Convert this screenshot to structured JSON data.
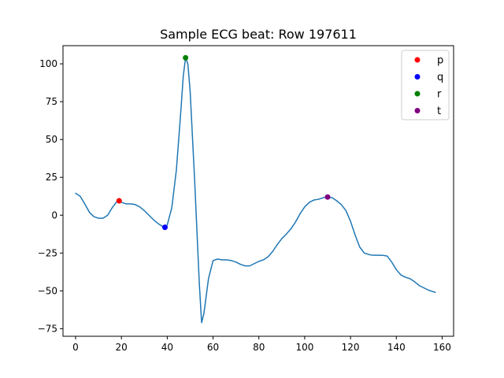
{
  "chart_data": {
    "type": "line",
    "title": "Sample ECG beat: Row 197611",
    "xlabel": "",
    "ylabel": "",
    "xlim": [
      -5.5,
      165
    ],
    "ylim": [
      -80,
      112
    ],
    "xticks": [
      0,
      20,
      40,
      60,
      80,
      100,
      120,
      140,
      160
    ],
    "yticks": [
      -75,
      -50,
      -25,
      0,
      25,
      50,
      75,
      100
    ],
    "grid": false,
    "legend_position": "top-right",
    "line_color": "#1f77b4",
    "series": [
      {
        "x": [
          0,
          2,
          4,
          6,
          8,
          10,
          12,
          14,
          16,
          18,
          19,
          20,
          22,
          24,
          26,
          28,
          30,
          32,
          34,
          36,
          38,
          39,
          40,
          42,
          44,
          46,
          47,
          48,
          49,
          50,
          52,
          54,
          55,
          56,
          58,
          60,
          62,
          64,
          66,
          68,
          70,
          72,
          74,
          76,
          78,
          80,
          82,
          84,
          86,
          88,
          90,
          92,
          94,
          96,
          98,
          100,
          102,
          104,
          106,
          108,
          110,
          112,
          114,
          116,
          118,
          120,
          122,
          124,
          126,
          128,
          130,
          132,
          134,
          136,
          138,
          140,
          142,
          144,
          146,
          148,
          150,
          152,
          154,
          156,
          157
        ],
        "y": [
          14.5,
          12.5,
          7.5,
          2,
          -1,
          -2,
          -2,
          0,
          5,
          9,
          9.5,
          8.5,
          7.5,
          7.5,
          7,
          5.5,
          3,
          0,
          -3,
          -5.5,
          -7.5,
          -8,
          -6.5,
          5,
          30,
          70,
          92,
          104,
          100,
          82,
          22,
          -45,
          -71,
          -65,
          -42,
          -30,
          -29,
          -29.5,
          -29.5,
          -30,
          -31,
          -32.5,
          -33.5,
          -33.5,
          -32,
          -30.5,
          -29.5,
          -27.5,
          -24,
          -19.5,
          -15.5,
          -12.5,
          -9,
          -4.5,
          1,
          5.5,
          8.5,
          10,
          10.5,
          11.5,
          12,
          11.5,
          9.5,
          7,
          3,
          -4,
          -13,
          -21,
          -25,
          -26,
          -26.5,
          -26.5,
          -26.5,
          -27,
          -31,
          -36,
          -39.5,
          -41,
          -42,
          -44,
          -46.5,
          -48,
          -49.5,
          -50.5,
          -51
        ]
      }
    ],
    "markers": [
      {
        "name": "p",
        "x": 19,
        "y": 9.5,
        "color": "#ff0000"
      },
      {
        "name": "q",
        "x": 39,
        "y": -8,
        "color": "#0000ff"
      },
      {
        "name": "r",
        "x": 48,
        "y": 104,
        "color": "#008000"
      },
      {
        "name": "t",
        "x": 110,
        "y": 12,
        "color": "#800080"
      }
    ]
  }
}
